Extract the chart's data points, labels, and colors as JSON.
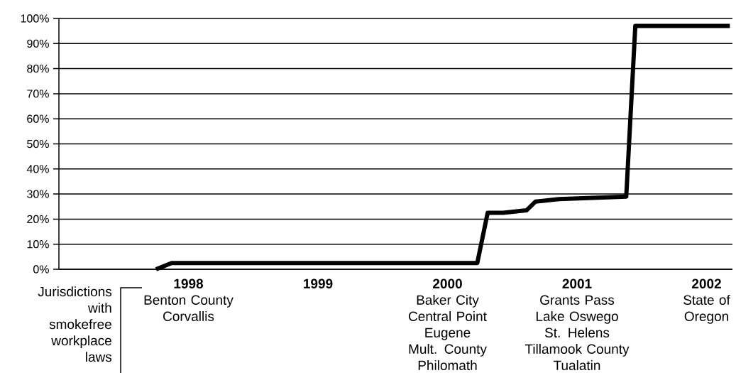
{
  "chart_data": {
    "type": "line",
    "x": [
      1997.75,
      1997.87,
      2000.23,
      2000.31,
      2000.43,
      2000.61,
      2000.68,
      2000.86,
      2001.38,
      2001.45,
      2002.18
    ],
    "series": [
      {
        "color": "#000000",
        "values": [
          0,
          2.5,
          2.5,
          22.5,
          22.5,
          23.5,
          27,
          28,
          29,
          97,
          97
        ]
      }
    ],
    "xlim": [
      1997,
      2002.2
    ],
    "xticks": [
      {
        "value": 1998,
        "label": "**1998**\nBenton County\nCorvallis"
      },
      {
        "value": 1999,
        "label": "**1999**"
      },
      {
        "value": 2000,
        "label": "**2000**\nBaker City\nCentral Point\nEugene\nMult. County\nPhilomath"
      },
      {
        "value": 2001,
        "label": "**2001**\nGrants Pass\nLake Oswego\nSt. Helens\nTillamook County\nTualatin"
      },
      {
        "value": 2002,
        "label": "**2002**\nState of\nOregon"
      }
    ],
    "ylim": [
      0,
      100
    ],
    "yticks": [
      {
        "value": 0,
        "label": "0%"
      },
      {
        "value": 10,
        "label": "10%"
      },
      {
        "value": 20,
        "label": "20%"
      },
      {
        "value": 30,
        "label": "30%"
      },
      {
        "value": 40,
        "label": "40%"
      },
      {
        "value": 50,
        "label": "50%"
      },
      {
        "value": 60,
        "label": "60%"
      },
      {
        "value": 70,
        "label": "70%"
      },
      {
        "value": 80,
        "label": "80%"
      },
      {
        "value": 90,
        "label": "90%"
      },
      {
        "value": 100,
        "label": "100%"
      }
    ],
    "grid": "y",
    "marker": "none",
    "line_style": "solid",
    "annotations": [
      "Jurisdictions with smokefree workplace laws"
    ]
  }
}
